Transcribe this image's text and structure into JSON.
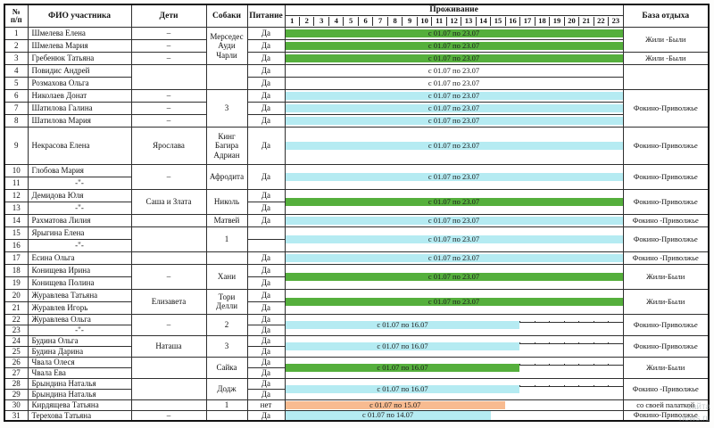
{
  "header": {
    "num1": "№",
    "num2": "п/п",
    "name": "ФИО участника",
    "children": "Дети",
    "dogs": "Собаки",
    "food": "Питание",
    "stay": "Проживание",
    "base": "База отдыха",
    "days": [
      "1",
      "2",
      "3",
      "4",
      "5",
      "6",
      "7",
      "8",
      "9",
      "10",
      "11",
      "12",
      "13",
      "14",
      "15",
      "16",
      "17",
      "18",
      "19",
      "20",
      "21",
      "22",
      "23"
    ]
  },
  "colors": {
    "green": "#55af3c",
    "cyan": "#b5ebf2",
    "orange": "#f8bb90",
    "white": "#ffffff"
  },
  "watermark": {
    "line1": "сайта",
    "line2": "news.ru"
  },
  "rows": [
    {
      "n": "1",
      "name": "Шмелева Елена",
      "ch": {
        "t": "–",
        "s": 1
      },
      "dg": {
        "t": "Мерседес\nАуди\nЧарли",
        "s": 3
      },
      "fd": {
        "t": "Да",
        "s": 1
      },
      "st": {
        "t": "с 01.07 по 23.07",
        "c": "green",
        "d": 23,
        "s": 1
      },
      "bs": {
        "t": "Жили -Были",
        "s": 2
      }
    },
    {
      "n": "2",
      "name": "Шмелева Мария",
      "ch": {
        "t": "–",
        "s": 1
      },
      "fd": {
        "t": "Да",
        "s": 1
      },
      "st": {
        "t": "с 01.07 по 23.07",
        "c": "green",
        "d": 23,
        "s": 1
      }
    },
    {
      "n": "3",
      "name": "Гребенюк Татьяна",
      "ch": {
        "t": "–",
        "s": 1
      },
      "fd": {
        "t": "Да",
        "s": 1
      },
      "st": {
        "t": "с 01.07 по 23.07",
        "c": "green",
        "d": 23,
        "s": 1
      },
      "bs": {
        "t": "Жили -Были",
        "s": 1
      }
    },
    {
      "n": "4",
      "name": "Повидис Андрей",
      "ch": {
        "t": "",
        "s": 2
      },
      "dg": {
        "t": "",
        "s": 2
      },
      "fd": {
        "t": "Да",
        "s": 1
      },
      "st": {
        "t": "с 01.07 по 23.07",
        "c": "white",
        "d": 23,
        "s": 1
      },
      "bs": {
        "t": "",
        "s": 2
      }
    },
    {
      "n": "5",
      "name": "Розмахова Ольга",
      "fd": {
        "t": "Да",
        "s": 1
      },
      "st": {
        "t": "с 01.07 по 23.07",
        "c": "white",
        "d": 23,
        "s": 1
      }
    },
    {
      "n": "6",
      "name": "Николаев Донат",
      "ch": {
        "t": "–",
        "s": 1
      },
      "dg": {
        "t": "3",
        "s": 3
      },
      "fd": {
        "t": "Да",
        "s": 1
      },
      "st": {
        "t": "с 01.07 по 23.07",
        "c": "cyan",
        "d": 23,
        "s": 1
      },
      "bs": {
        "t": "Фокино-Приволжье",
        "s": 3
      }
    },
    {
      "n": "7",
      "name": "Шатилова Галина",
      "ch": {
        "t": "–",
        "s": 1
      },
      "fd": {
        "t": "Да",
        "s": 1
      },
      "st": {
        "t": "с 01.07 по 23.07",
        "c": "cyan",
        "d": 23,
        "s": 1
      }
    },
    {
      "n": "8",
      "name": "Шатилова Мария",
      "ch": {
        "t": "–",
        "s": 1
      },
      "fd": {
        "t": "Да",
        "s": 1
      },
      "st": {
        "t": "с 01.07 по 23.07",
        "c": "cyan",
        "d": 23,
        "s": 1
      }
    },
    {
      "n": "9",
      "name": "Некрасова Елена",
      "tall": true,
      "ch": {
        "t": "Ярослава",
        "s": 1
      },
      "dg": {
        "t": "Кинг\nБагира\nАдриан",
        "s": 1
      },
      "fd": {
        "t": "Да",
        "s": 1
      },
      "st": {
        "t": "с 01.07 по 23.07",
        "c": "cyan",
        "d": 23,
        "s": 1
      },
      "bs": {
        "t": "Фокино-Приволжье",
        "s": 1
      }
    },
    {
      "n": "10",
      "name": "Глобова Мария",
      "ch": {
        "t": "–",
        "s": 2
      },
      "dg": {
        "t": "Афродита",
        "s": 2
      },
      "fd": {
        "t": "Да",
        "s": 2
      },
      "st": {
        "t": "с 01.07 по 23.07",
        "c": "cyan",
        "d": 23,
        "s": 2
      },
      "bs": {
        "t": "Фокино-Приволжье",
        "s": 2
      }
    },
    {
      "n": "11",
      "name": "-\"-"
    },
    {
      "n": "12",
      "name": "Демидова Юля",
      "ch": {
        "t": "Саша  и  Злата",
        "s": 2
      },
      "dg": {
        "t": "Николь",
        "s": 2
      },
      "fd": {
        "t": "Да",
        "s": 1
      },
      "st": {
        "t": "с 01.07 по 23.07",
        "c": "green",
        "d": 23,
        "s": 2
      },
      "bs": {
        "t": "Фокино-Приволжье",
        "s": 2
      }
    },
    {
      "n": "13",
      "name": "-\"-",
      "fd": {
        "t": "Да",
        "s": 1
      }
    },
    {
      "n": "14",
      "name": "Рахматова Лилия",
      "ch": {
        "t": "",
        "s": 1
      },
      "dg": {
        "t": "Матвей",
        "s": 1
      },
      "fd": {
        "t": "Да",
        "s": 1
      },
      "st": {
        "t": "с 01.07 по 23.07",
        "c": "cyan",
        "d": 23,
        "s": 1
      },
      "bs": {
        "t": "Фокино -Приволжье",
        "s": 1
      }
    },
    {
      "n": "15",
      "name": "Ярыгина Елена",
      "ch": {
        "t": "",
        "s": 2
      },
      "dg": {
        "t": "1",
        "s": 2
      },
      "fd": {
        "t": "",
        "s": 1
      },
      "st": {
        "t": "с 01.07 по 23.07",
        "c": "cyan",
        "d": 23,
        "s": 2
      },
      "bs": {
        "t": "Фокино-Приволжье",
        "s": 2
      }
    },
    {
      "n": "16",
      "name": "-\"-",
      "fd": {
        "t": "",
        "s": 1
      }
    },
    {
      "n": "17",
      "name": "Есина Ольга",
      "ch": {
        "t": "",
        "s": 1
      },
      "dg": {
        "t": "",
        "s": 1
      },
      "fd": {
        "t": "Да",
        "s": 1
      },
      "st": {
        "t": "с 01.07 по 23.07",
        "c": "cyan",
        "d": 23,
        "s": 1
      },
      "bs": {
        "t": "Фокино -Приволжье",
        "s": 1
      }
    },
    {
      "n": "18",
      "name": "Конищева Ирина",
      "ch": {
        "t": "–",
        "s": 2
      },
      "dg": {
        "t": "Хани",
        "s": 2
      },
      "fd": {
        "t": "Да",
        "s": 1
      },
      "st": {
        "t": "с 01.07 по 23.07",
        "c": "green",
        "d": 23,
        "s": 2
      },
      "bs": {
        "t": "Жили-Были",
        "s": 2
      }
    },
    {
      "n": "19",
      "name": "Конищева Полина",
      "fd": {
        "t": "Да",
        "s": 1
      }
    },
    {
      "n": "20",
      "name": "Журавлева Татьяна",
      "ch": {
        "t": "Елизавета",
        "s": 2
      },
      "dg": {
        "t": "Тори\nДелли",
        "s": 2
      },
      "fd": {
        "t": "Да",
        "s": 1
      },
      "st": {
        "t": "с 01.07 по 23.07",
        "c": "green",
        "d": 23,
        "s": 2
      },
      "bs": {
        "t": "Жили-Были",
        "s": 2
      }
    },
    {
      "n": "21",
      "name": "Журавлев Игорь",
      "fd": {
        "t": "Да",
        "s": 1
      }
    },
    {
      "n": "22",
      "name": "Журавлева Ольга",
      "sm": true,
      "ch": {
        "t": "–",
        "s": 2
      },
      "dg": {
        "t": "2",
        "s": 2
      },
      "fd": {
        "t": "Да",
        "s": 1
      },
      "st": {
        "t": "с 01.07 по 16.07",
        "c": "cyan",
        "d": 16,
        "s": 2
      },
      "bs": {
        "t": "Фокино-Приволжье",
        "s": 2
      }
    },
    {
      "n": "23",
      "name": "-\"-",
      "sm": true,
      "fd": {
        "t": "Да",
        "s": 1
      }
    },
    {
      "n": "24",
      "name": "Будина Ольга",
      "sm": true,
      "ch": {
        "t": "Наташа",
        "s": 2
      },
      "dg": {
        "t": "3",
        "s": 2
      },
      "fd": {
        "t": "Да",
        "s": 1
      },
      "st": {
        "t": "с 01.07 по 16.07",
        "c": "cyan",
        "d": 16,
        "s": 2
      },
      "bs": {
        "t": "Фокино-Приволжье",
        "s": 2
      }
    },
    {
      "n": "25",
      "name": "Будина Дарина",
      "sm": true,
      "fd": {
        "t": "Да",
        "s": 1
      }
    },
    {
      "n": "26",
      "name": "Чвала Олеся",
      "sm": true,
      "ch": {
        "t": "",
        "s": 2
      },
      "dg": {
        "t": "Сайка",
        "s": 2
      },
      "fd": {
        "t": "Да",
        "s": 1
      },
      "st": {
        "t": "с 01.07 по 16.07",
        "c": "green",
        "d": 16,
        "s": 2
      },
      "bs": {
        "t": "Жили-Были",
        "s": 2
      }
    },
    {
      "n": "27",
      "name": "Чвала Ева",
      "sm": true,
      "fd": {
        "t": "Да",
        "s": 1
      }
    },
    {
      "n": "28",
      "name": "Брындина Наталья",
      "sm": true,
      "ch": {
        "t": "",
        "s": 2
      },
      "dg": {
        "t": "Додж",
        "s": 2
      },
      "fd": {
        "t": "Да",
        "s": 1
      },
      "st": {
        "t": "с 01.07 по 16.07",
        "c": "cyan",
        "d": 16,
        "s": 2
      },
      "bs": {
        "t": "Фокино -Приволжье",
        "s": 2
      }
    },
    {
      "n": "29",
      "name": "Брындина Наталья",
      "sm": true,
      "fd": {
        "t": "Да",
        "s": 1
      }
    },
    {
      "n": "30",
      "name": "Кирдящева Татьяна",
      "sm": true,
      "ch": {
        "t": "",
        "s": 1
      },
      "dg": {
        "t": "1",
        "s": 1
      },
      "fd": {
        "t": "нет",
        "s": 1
      },
      "st": {
        "t": "с 01.07 по 15.07",
        "c": "orange",
        "d": 15,
        "s": 1
      },
      "bs": {
        "t": "со своей палаткой",
        "s": 1
      }
    },
    {
      "n": "31",
      "name": "Терехова Татьяна",
      "sm": true,
      "ch": {
        "t": "–",
        "s": 1
      },
      "dg": {
        "t": "",
        "s": 1
      },
      "fd": {
        "t": "Да",
        "s": 1
      },
      "st": {
        "t": "с 01.07 по 14.07",
        "c": "cyan",
        "d": 14,
        "s": 1
      },
      "bs": {
        "t": "Фокино-Приволжье",
        "s": 1
      }
    }
  ]
}
